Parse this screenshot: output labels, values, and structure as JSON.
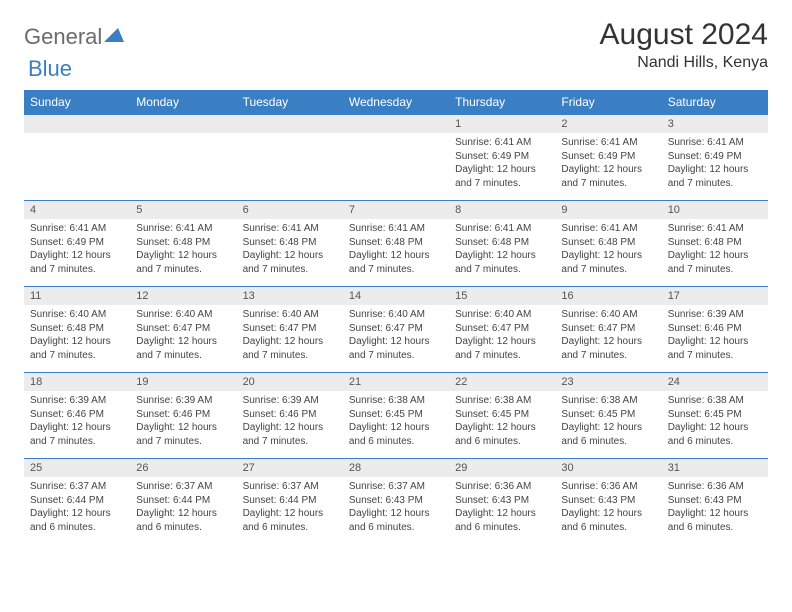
{
  "brand": {
    "part1": "General",
    "part2": "Blue"
  },
  "title": "August 2024",
  "location": "Nandi Hills, Kenya",
  "colors": {
    "header_bg": "#3a7fc4",
    "header_text": "#ffffff",
    "daynum_bg": "#ececec",
    "border": "#3a7fc4",
    "brand_gray": "#6b6b6b",
    "brand_blue": "#3a7fc4"
  },
  "weekdays": [
    "Sunday",
    "Monday",
    "Tuesday",
    "Wednesday",
    "Thursday",
    "Friday",
    "Saturday"
  ],
  "first_weekday_index": 4,
  "days": [
    {
      "n": 1,
      "sunrise": "6:41 AM",
      "sunset": "6:49 PM",
      "daylight": "12 hours and 7 minutes."
    },
    {
      "n": 2,
      "sunrise": "6:41 AM",
      "sunset": "6:49 PM",
      "daylight": "12 hours and 7 minutes."
    },
    {
      "n": 3,
      "sunrise": "6:41 AM",
      "sunset": "6:49 PM",
      "daylight": "12 hours and 7 minutes."
    },
    {
      "n": 4,
      "sunrise": "6:41 AM",
      "sunset": "6:49 PM",
      "daylight": "12 hours and 7 minutes."
    },
    {
      "n": 5,
      "sunrise": "6:41 AM",
      "sunset": "6:48 PM",
      "daylight": "12 hours and 7 minutes."
    },
    {
      "n": 6,
      "sunrise": "6:41 AM",
      "sunset": "6:48 PM",
      "daylight": "12 hours and 7 minutes."
    },
    {
      "n": 7,
      "sunrise": "6:41 AM",
      "sunset": "6:48 PM",
      "daylight": "12 hours and 7 minutes."
    },
    {
      "n": 8,
      "sunrise": "6:41 AM",
      "sunset": "6:48 PM",
      "daylight": "12 hours and 7 minutes."
    },
    {
      "n": 9,
      "sunrise": "6:41 AM",
      "sunset": "6:48 PM",
      "daylight": "12 hours and 7 minutes."
    },
    {
      "n": 10,
      "sunrise": "6:41 AM",
      "sunset": "6:48 PM",
      "daylight": "12 hours and 7 minutes."
    },
    {
      "n": 11,
      "sunrise": "6:40 AM",
      "sunset": "6:48 PM",
      "daylight": "12 hours and 7 minutes."
    },
    {
      "n": 12,
      "sunrise": "6:40 AM",
      "sunset": "6:47 PM",
      "daylight": "12 hours and 7 minutes."
    },
    {
      "n": 13,
      "sunrise": "6:40 AM",
      "sunset": "6:47 PM",
      "daylight": "12 hours and 7 minutes."
    },
    {
      "n": 14,
      "sunrise": "6:40 AM",
      "sunset": "6:47 PM",
      "daylight": "12 hours and 7 minutes."
    },
    {
      "n": 15,
      "sunrise": "6:40 AM",
      "sunset": "6:47 PM",
      "daylight": "12 hours and 7 minutes."
    },
    {
      "n": 16,
      "sunrise": "6:40 AM",
      "sunset": "6:47 PM",
      "daylight": "12 hours and 7 minutes."
    },
    {
      "n": 17,
      "sunrise": "6:39 AM",
      "sunset": "6:46 PM",
      "daylight": "12 hours and 7 minutes."
    },
    {
      "n": 18,
      "sunrise": "6:39 AM",
      "sunset": "6:46 PM",
      "daylight": "12 hours and 7 minutes."
    },
    {
      "n": 19,
      "sunrise": "6:39 AM",
      "sunset": "6:46 PM",
      "daylight": "12 hours and 7 minutes."
    },
    {
      "n": 20,
      "sunrise": "6:39 AM",
      "sunset": "6:46 PM",
      "daylight": "12 hours and 7 minutes."
    },
    {
      "n": 21,
      "sunrise": "6:38 AM",
      "sunset": "6:45 PM",
      "daylight": "12 hours and 6 minutes."
    },
    {
      "n": 22,
      "sunrise": "6:38 AM",
      "sunset": "6:45 PM",
      "daylight": "12 hours and 6 minutes."
    },
    {
      "n": 23,
      "sunrise": "6:38 AM",
      "sunset": "6:45 PM",
      "daylight": "12 hours and 6 minutes."
    },
    {
      "n": 24,
      "sunrise": "6:38 AM",
      "sunset": "6:45 PM",
      "daylight": "12 hours and 6 minutes."
    },
    {
      "n": 25,
      "sunrise": "6:37 AM",
      "sunset": "6:44 PM",
      "daylight": "12 hours and 6 minutes."
    },
    {
      "n": 26,
      "sunrise": "6:37 AM",
      "sunset": "6:44 PM",
      "daylight": "12 hours and 6 minutes."
    },
    {
      "n": 27,
      "sunrise": "6:37 AM",
      "sunset": "6:44 PM",
      "daylight": "12 hours and 6 minutes."
    },
    {
      "n": 28,
      "sunrise": "6:37 AM",
      "sunset": "6:43 PM",
      "daylight": "12 hours and 6 minutes."
    },
    {
      "n": 29,
      "sunrise": "6:36 AM",
      "sunset": "6:43 PM",
      "daylight": "12 hours and 6 minutes."
    },
    {
      "n": 30,
      "sunrise": "6:36 AM",
      "sunset": "6:43 PM",
      "daylight": "12 hours and 6 minutes."
    },
    {
      "n": 31,
      "sunrise": "6:36 AM",
      "sunset": "6:43 PM",
      "daylight": "12 hours and 6 minutes."
    }
  ],
  "labels": {
    "sunrise": "Sunrise:",
    "sunset": "Sunset:",
    "daylight": "Daylight:"
  }
}
